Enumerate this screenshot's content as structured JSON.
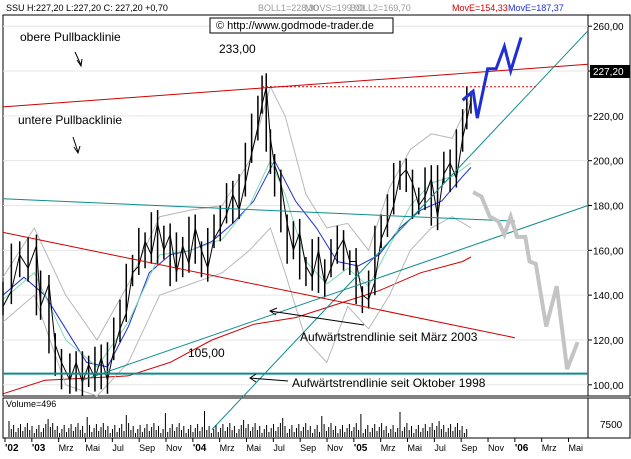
{
  "header": {
    "symbol_info": "SSU H:227,20 L:227,20 C: 227,20 +0,70",
    "boll1": "BOLL1=228,30",
    "movs": "MOVS=199,00",
    "boll2": "BOLL2=169,70",
    "move1": "MovE=154,33",
    "move2": "MovE=187,37",
    "source": "© http://www.godmode-trader.de"
  },
  "chart_data": {
    "type": "line",
    "price_axis": {
      "ticks": [
        "260,00",
        "240,00",
        "220,00",
        "200,00",
        "180,00",
        "160,00",
        "140,00",
        "120,00",
        "100,00"
      ],
      "values": [
        260,
        240,
        220,
        200,
        180,
        160,
        140,
        120,
        100
      ],
      "range": [
        95,
        265
      ],
      "current_label": "227,20",
      "current_value": 227.2
    },
    "time_axis": {
      "labels": [
        "'02",
        "'03",
        "Mrz",
        "Mai",
        "Jul",
        "Sep",
        "Nov",
        "'04",
        "Mrz",
        "Mai",
        "Jul",
        "Sep",
        "Nov",
        "'05",
        "Mrz",
        "Mai",
        "Jul",
        "Sep",
        "Nov",
        "'06",
        "Mrz",
        "Mai"
      ],
      "bold": [
        "'02",
        "'03",
        "'04",
        "'05",
        "'06"
      ]
    },
    "annotations": [
      {
        "id": "upper",
        "text": "obere Pullbacklinie"
      },
      {
        "id": "lower",
        "text": "untere Pullbacklinie"
      },
      {
        "id": "high",
        "text": "233,00"
      },
      {
        "id": "low",
        "text": "105,00"
      },
      {
        "id": "trend2003",
        "text": "Aufwärtstrendlinie seit März 2003"
      },
      {
        "id": "trend1998",
        "text": "Aufwärtstrendlinie seit Oktober 1998"
      }
    ],
    "projections": [
      {
        "name": "bull",
        "color": "#1f2fd6",
        "path": [
          [
            220,
            227
          ],
          [
            225,
            231
          ],
          [
            227,
            219
          ],
          [
            232,
            241
          ],
          [
            236,
            241
          ],
          [
            240,
            251
          ],
          [
            243,
            240
          ],
          [
            248,
            255
          ]
        ]
      },
      {
        "name": "bear",
        "color": "#c4c4c4",
        "path": [
          [
            225,
            186
          ],
          [
            229,
            184
          ],
          [
            233,
            175
          ],
          [
            237,
            173
          ],
          [
            240,
            167
          ],
          [
            243,
            175
          ],
          [
            246,
            166
          ],
          [
            250,
            166
          ],
          [
            252,
            155
          ],
          [
            255,
            154
          ],
          [
            260,
            126
          ],
          [
            265,
            144
          ],
          [
            270,
            107
          ],
          [
            275,
            119
          ]
        ]
      }
    ],
    "price_series_path": [
      [
        0,
        135
      ],
      [
        4,
        142
      ],
      [
        8,
        158
      ],
      [
        12,
        152
      ],
      [
        16,
        162
      ],
      [
        18,
        135
      ],
      [
        22,
        145
      ],
      [
        25,
        118
      ],
      [
        28,
        110
      ],
      [
        32,
        102
      ],
      [
        35,
        110
      ],
      [
        38,
        101
      ],
      [
        41,
        109
      ],
      [
        44,
        103
      ],
      [
        47,
        112
      ],
      [
        50,
        102
      ],
      [
        53,
        115
      ],
      [
        56,
        125
      ],
      [
        59,
        132
      ],
      [
        62,
        150
      ],
      [
        65,
        153
      ],
      [
        68,
        164
      ],
      [
        71,
        158
      ],
      [
        74,
        172
      ],
      [
        77,
        160
      ],
      [
        80,
        167
      ],
      [
        83,
        150
      ],
      [
        86,
        162
      ],
      [
        89,
        154
      ],
      [
        92,
        170
      ],
      [
        95,
        160
      ],
      [
        98,
        152
      ],
      [
        101,
        165
      ],
      [
        104,
        170
      ],
      [
        107,
        176
      ],
      [
        110,
        185
      ],
      [
        113,
        178
      ],
      [
        116,
        190
      ],
      [
        119,
        203
      ],
      [
        122,
        215
      ],
      [
        124,
        225
      ],
      [
        126,
        233
      ],
      [
        128,
        210
      ],
      [
        130,
        198
      ],
      [
        133,
        190
      ],
      [
        136,
        172
      ],
      [
        139,
        160
      ],
      [
        142,
        168
      ],
      [
        145,
        153
      ],
      [
        148,
        148
      ],
      [
        151,
        160
      ],
      [
        154,
        145
      ],
      [
        157,
        152
      ],
      [
        160,
        160
      ],
      [
        163,
        165
      ],
      [
        166,
        155
      ],
      [
        169,
        155
      ],
      [
        172,
        140
      ],
      [
        175,
        138
      ],
      [
        178,
        146
      ],
      [
        181,
        165
      ],
      [
        184,
        172
      ],
      [
        187,
        180
      ],
      [
        190,
        193
      ],
      [
        193,
        196
      ],
      [
        196,
        190
      ],
      [
        199,
        180
      ],
      [
        202,
        184
      ],
      [
        205,
        192
      ],
      [
        208,
        175
      ],
      [
        211,
        194
      ],
      [
        214,
        199
      ],
      [
        217,
        192
      ],
      [
        220,
        210
      ],
      [
        222,
        218
      ],
      [
        224,
        227
      ]
    ],
    "indicators": [
      {
        "name": "MovE=154,33",
        "color": "#d10000",
        "path": [
          [
            0,
            96
          ],
          [
            20,
            102
          ],
          [
            40,
            103
          ],
          [
            60,
            104
          ],
          [
            80,
            110
          ],
          [
            100,
            120
          ],
          [
            120,
            127
          ],
          [
            140,
            130
          ],
          [
            160,
            136
          ],
          [
            180,
            142
          ],
          [
            200,
            150
          ],
          [
            220,
            155
          ],
          [
            224,
            157
          ]
        ]
      },
      {
        "name": "MovE=187,37",
        "color": "#1f2fd6",
        "path": [
          [
            0,
            140
          ],
          [
            10,
            148
          ],
          [
            20,
            140
          ],
          [
            30,
            125
          ],
          [
            40,
            110
          ],
          [
            50,
            108
          ],
          [
            60,
            126
          ],
          [
            70,
            150
          ],
          [
            80,
            158
          ],
          [
            90,
            160
          ],
          [
            100,
            164
          ],
          [
            110,
            172
          ],
          [
            120,
            182
          ],
          [
            130,
            200
          ],
          [
            140,
            182
          ],
          [
            150,
            170
          ],
          [
            160,
            155
          ],
          [
            170,
            153
          ],
          [
            180,
            158
          ],
          [
            190,
            170
          ],
          [
            200,
            178
          ],
          [
            210,
            182
          ],
          [
            220,
            193
          ],
          [
            224,
            197
          ]
        ]
      },
      {
        "name": "BOLL1=228,30",
        "color": "#b8b8b8",
        "path": [
          [
            0,
            148
          ],
          [
            15,
            170
          ],
          [
            30,
            140
          ],
          [
            45,
            120
          ],
          [
            60,
            145
          ],
          [
            75,
            175
          ],
          [
            90,
            178
          ],
          [
            105,
            180
          ],
          [
            118,
            200
          ],
          [
            128,
            233
          ],
          [
            135,
            220
          ],
          [
            145,
            185
          ],
          [
            155,
            170
          ],
          [
            165,
            172
          ],
          [
            175,
            160
          ],
          [
            185,
            188
          ],
          [
            195,
            205
          ],
          [
            205,
            212
          ],
          [
            215,
            210
          ],
          [
            224,
            228
          ]
        ]
      },
      {
        "name": "BOLL2=169,70",
        "color": "#b8b8b8",
        "path": [
          [
            0,
            128
          ],
          [
            15,
            140
          ],
          [
            30,
            100
          ],
          [
            45,
            95
          ],
          [
            60,
            110
          ],
          [
            75,
            140
          ],
          [
            90,
            145
          ],
          [
            105,
            150
          ],
          [
            118,
            160
          ],
          [
            128,
            170
          ],
          [
            135,
            150
          ],
          [
            145,
            120
          ],
          [
            155,
            110
          ],
          [
            165,
            135
          ],
          [
            175,
            125
          ],
          [
            185,
            140
          ],
          [
            195,
            160
          ],
          [
            205,
            170
          ],
          [
            215,
            175
          ],
          [
            224,
            170
          ]
        ]
      },
      {
        "name": "MOVS=199,00",
        "color": "#7fd8b8",
        "path": [
          [
            0,
            138
          ],
          [
            15,
            150
          ],
          [
            30,
            120
          ],
          [
            45,
            108
          ],
          [
            60,
            128
          ],
          [
            75,
            158
          ],
          [
            90,
            160
          ],
          [
            105,
            165
          ],
          [
            118,
            180
          ],
          [
            128,
            200
          ],
          [
            135,
            185
          ],
          [
            145,
            155
          ],
          [
            155,
            145
          ],
          [
            165,
            152
          ],
          [
            175,
            144
          ],
          [
            185,
            162
          ],
          [
            195,
            180
          ],
          [
            205,
            190
          ],
          [
            215,
            193
          ],
          [
            224,
            199
          ]
        ]
      }
    ],
    "lines": [
      {
        "name": "obere Pullbacklinie",
        "color": "#d10000",
        "from": [
          0,
          224
        ],
        "to": [
          280,
          243
        ]
      },
      {
        "name": "untere Pullbacklinie",
        "color": "#0d8c8c",
        "from": [
          0,
          183
        ],
        "to": [
          245,
          173
        ]
      },
      {
        "name": "Aufwärtstrendlinie seit März 2003",
        "color": "#0d8c8c",
        "from": [
          38,
          102
        ],
        "to": [
          280,
          180
        ]
      },
      {
        "name": "Aufwärtstrendlinie seit Oktober 1998",
        "color": "#0d8c8c",
        "from": [
          100,
          80
        ],
        "to": [
          280,
          258
        ]
      },
      {
        "name": "Abwärtstrend",
        "color": "#d10000",
        "from": [
          0,
          168
        ],
        "to": [
          245,
          121
        ]
      },
      {
        "name": "105,00",
        "color": "#0d8c8c",
        "from": [
          0,
          105
        ],
        "to": [
          280,
          105
        ]
      }
    ],
    "volume": {
      "label": "Volume=496",
      "tick": "7500"
    }
  }
}
